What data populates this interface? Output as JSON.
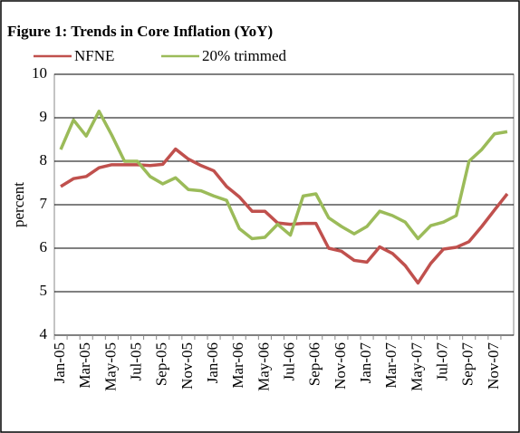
{
  "chart_data": {
    "type": "line",
    "title": "Figure 1: Trends in Core Inflation (YoY)",
    "y_label": "percent",
    "categories": [
      "Jan-05",
      null,
      "Mar-05",
      null,
      "May-05",
      null,
      "Jul-05",
      null,
      "Sep-05",
      null,
      "Nov-05",
      null,
      "Jan-06",
      null,
      "Mar-06",
      null,
      "May-06",
      null,
      "Jul-06",
      null,
      "Sep-06",
      null,
      "Nov-06",
      null,
      "Jan-07",
      null,
      "Mar-07",
      null,
      "May-07",
      null,
      "Jul-07",
      null,
      "Sep-07",
      null,
      "Nov-07",
      null
    ],
    "series": [
      {
        "name": "NFNE",
        "color": "#c0504d",
        "values": [
          7.42,
          7.6,
          7.65,
          7.85,
          7.92,
          7.92,
          7.92,
          7.9,
          7.93,
          8.28,
          8.05,
          7.9,
          7.78,
          7.42,
          7.18,
          6.85,
          6.85,
          6.58,
          6.55,
          6.57,
          6.57,
          6.0,
          5.93,
          5.72,
          5.68,
          6.03,
          5.88,
          5.6,
          5.2,
          5.65,
          5.98,
          6.02,
          6.15,
          6.5,
          6.88,
          7.25
        ]
      },
      {
        "name": "20% trimmed",
        "color": "#9bbb59",
        "values": [
          8.27,
          8.95,
          8.58,
          9.15,
          8.6,
          8.0,
          8.0,
          7.65,
          7.48,
          7.62,
          7.35,
          7.32,
          7.2,
          7.1,
          6.45,
          6.22,
          6.25,
          6.55,
          6.3,
          7.2,
          7.25,
          6.7,
          6.5,
          6.33,
          6.5,
          6.85,
          6.75,
          6.6,
          6.22,
          6.52,
          6.6,
          6.75,
          8.0,
          8.27,
          8.63,
          8.68
        ]
      }
    ],
    "ylim": [
      4,
      10
    ],
    "yticks": [
      4,
      5,
      6,
      7,
      8,
      9,
      10
    ],
    "grid": true,
    "legend": "top"
  }
}
